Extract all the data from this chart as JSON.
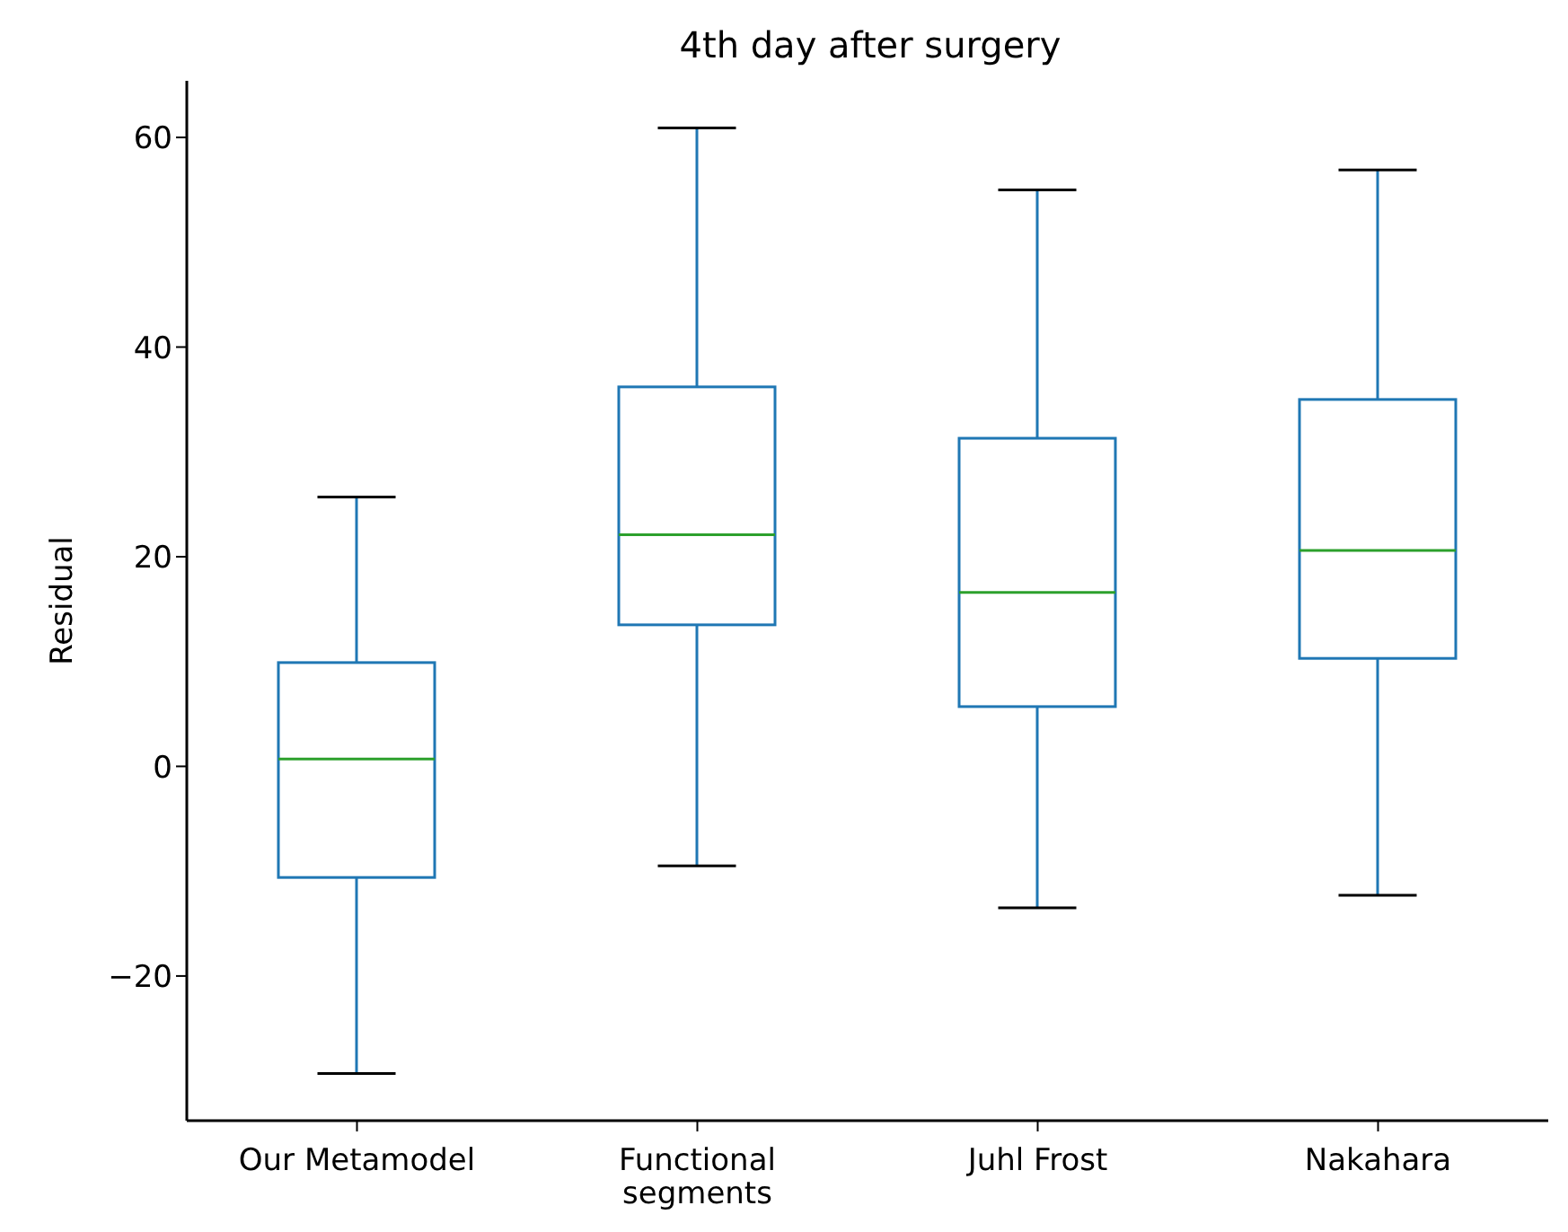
{
  "chart_data": {
    "type": "box",
    "title": "4th day after surgery",
    "ylabel": "Residual",
    "categories": [
      "Our Metamodel",
      "Functional\nsegments",
      "Juhl Frost",
      "Nakahara"
    ],
    "boxes": [
      {
        "low": -29.3,
        "q1": -10.6,
        "median": 0.7,
        "q3": 9.9,
        "high": 25.7
      },
      {
        "low": -9.5,
        "q1": 13.5,
        "median": 22.1,
        "q3": 36.2,
        "high": 60.9
      },
      {
        "low": -13.5,
        "q1": 5.7,
        "median": 16.6,
        "q3": 31.3,
        "high": 55.0
      },
      {
        "low": -12.3,
        "q1": 10.3,
        "median": 20.6,
        "q3": 35.0,
        "high": 56.9
      }
    ],
    "color": "#1f77b4",
    "ylim": [
      -33.8,
      65.4
    ],
    "yticks": [
      -20,
      0,
      20,
      40,
      60
    ],
    "grid": false,
    "legend": false
  }
}
